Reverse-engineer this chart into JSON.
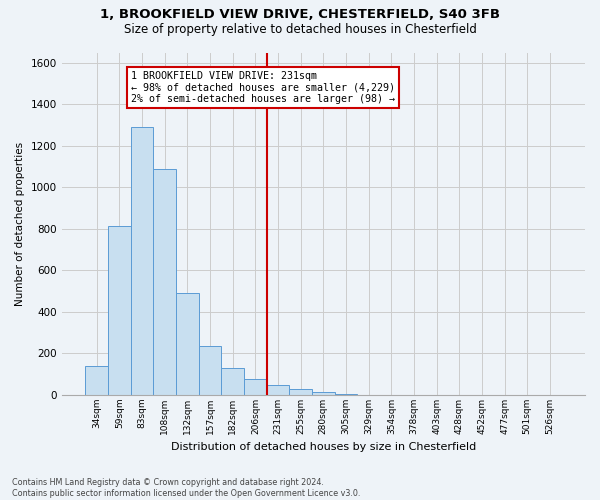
{
  "title": "1, BROOKFIELD VIEW DRIVE, CHESTERFIELD, S40 3FB",
  "subtitle": "Size of property relative to detached houses in Chesterfield",
  "xlabel": "Distribution of detached houses by size in Chesterfield",
  "ylabel": "Number of detached properties",
  "footer_line1": "Contains HM Land Registry data © Crown copyright and database right 2024.",
  "footer_line2": "Contains public sector information licensed under the Open Government Licence v3.0.",
  "bin_labels": [
    "34sqm",
    "59sqm",
    "83sqm",
    "108sqm",
    "132sqm",
    "157sqm",
    "182sqm",
    "206sqm",
    "231sqm",
    "255sqm",
    "280sqm",
    "305sqm",
    "329sqm",
    "354sqm",
    "378sqm",
    "403sqm",
    "428sqm",
    "452sqm",
    "477sqm",
    "501sqm",
    "526sqm"
  ],
  "bar_values": [
    140,
    815,
    1290,
    1090,
    490,
    235,
    130,
    75,
    50,
    30,
    15,
    5,
    0,
    0,
    0,
    0,
    0,
    0,
    0,
    0,
    0
  ],
  "bar_color": "#c8dff0",
  "bar_edge_color": "#5b9bd5",
  "vline_index": 8,
  "annotation_line1": "1 BROOKFIELD VIEW DRIVE: 231sqm",
  "annotation_line2": "← 98% of detached houses are smaller (4,229)",
  "annotation_line3": "2% of semi-detached houses are larger (98) →",
  "vline_color": "#cc0000",
  "ylim": [
    0,
    1650
  ],
  "yticks": [
    0,
    200,
    400,
    600,
    800,
    1000,
    1200,
    1400,
    1600
  ],
  "grid_color": "#cccccc",
  "background_color": "#eef3f8",
  "plot_bg_color": "#eef3f8",
  "title_fontsize": 9.5,
  "subtitle_fontsize": 8.5
}
